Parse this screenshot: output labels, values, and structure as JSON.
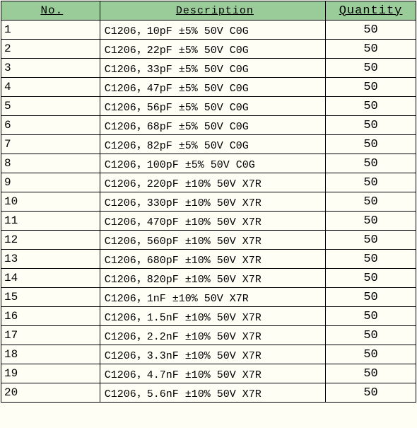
{
  "table": {
    "columns": [
      "No.",
      "Description",
      "Quantity"
    ],
    "header_bg": "#99cc99",
    "background": "#fefef5",
    "rows": [
      {
        "no": "1",
        "desc": "C1206，10pF ±5% 50V C0G",
        "qty": "50"
      },
      {
        "no": "2",
        "desc": "C1206，22pF ±5% 50V C0G",
        "qty": "50"
      },
      {
        "no": "3",
        "desc": "C1206，33pF ±5% 50V C0G",
        "qty": "50"
      },
      {
        "no": "4",
        "desc": "C1206，47pF ±5% 50V C0G",
        "qty": "50"
      },
      {
        "no": "5",
        "desc": "C1206，56pF ±5% 50V C0G",
        "qty": "50"
      },
      {
        "no": "6",
        "desc": "C1206，68pF ±5% 50V C0G",
        "qty": "50"
      },
      {
        "no": "7",
        "desc": "C1206，82pF ±5% 50V C0G",
        "qty": "50"
      },
      {
        "no": "8",
        "desc": "C1206，100pF ±5% 50V C0G",
        "qty": "50"
      },
      {
        "no": "9",
        "desc": "C1206，220pF ±10% 50V X7R",
        "qty": "50"
      },
      {
        "no": "10",
        "desc": "C1206，330pF ±10% 50V X7R",
        "qty": "50"
      },
      {
        "no": "11",
        "desc": "C1206，470pF ±10% 50V X7R",
        "qty": "50"
      },
      {
        "no": "12",
        "desc": "C1206，560pF ±10% 50V X7R",
        "qty": "50"
      },
      {
        "no": "13",
        "desc": "C1206，680pF ±10% 50V X7R",
        "qty": "50"
      },
      {
        "no": "14",
        "desc": "C1206，820pF ±10% 50V X7R",
        "qty": "50"
      },
      {
        "no": "15",
        "desc": "C1206，1nF ±10% 50V X7R",
        "qty": "50"
      },
      {
        "no": "16",
        "desc": "C1206，1.5nF ±10% 50V X7R",
        "qty": "50"
      },
      {
        "no": "17",
        "desc": "C1206，2.2nF ±10% 50V X7R",
        "qty": "50"
      },
      {
        "no": "18",
        "desc": "C1206，3.3nF ±10% 50V X7R",
        "qty": "50"
      },
      {
        "no": "19",
        "desc": "C1206，4.7nF ±10% 50V X7R",
        "qty": "50"
      },
      {
        "no": "20",
        "desc": "C1206，5.6nF ±10% 50V X7R",
        "qty": "50"
      }
    ]
  }
}
